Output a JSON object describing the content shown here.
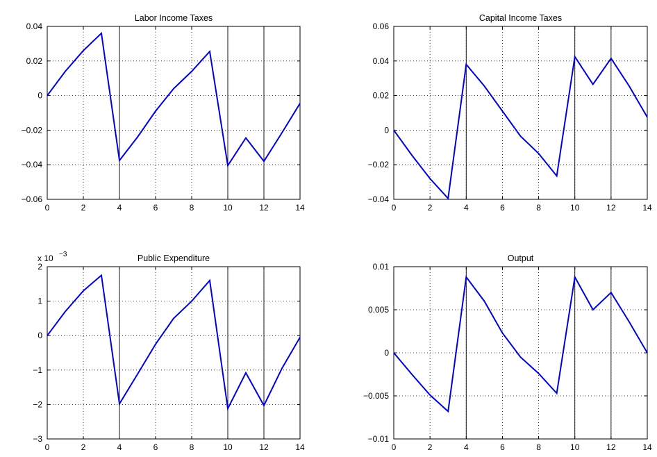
{
  "chart_data": [
    {
      "type": "line",
      "title": "Labor Income Taxes",
      "xlim": [
        0,
        14
      ],
      "ylim": [
        -0.06,
        0.04
      ],
      "xticks": [
        0,
        2,
        4,
        6,
        8,
        10,
        12,
        14
      ],
      "yticks": [
        -0.06,
        -0.04,
        -0.02,
        0,
        0.02,
        0.04
      ],
      "xtick_labels": [
        "0",
        "2",
        "4",
        "6",
        "8",
        "10",
        "12",
        "14"
      ],
      "ytick_labels": [
        "−0.06",
        "−0.04",
        "−0.02",
        "0",
        "0.02",
        "0.04"
      ],
      "y_exponent": "",
      "grid": "dotted",
      "vlines": [
        4,
        10,
        12
      ],
      "series": [
        {
          "color": "#0000dd",
          "x": [
            0,
            1,
            2,
            3,
            4,
            5,
            6,
            7,
            8,
            9,
            10,
            11,
            12,
            13,
            14
          ],
          "y": [
            0.0,
            0.014,
            0.026,
            0.036,
            -0.0375,
            -0.024,
            -0.009,
            0.004,
            0.014,
            0.0255,
            -0.0405,
            -0.0245,
            -0.038,
            -0.0215,
            -0.0045
          ]
        }
      ]
    },
    {
      "type": "line",
      "title": "Capital Income Taxes",
      "xlim": [
        0,
        14
      ],
      "ylim": [
        -0.04,
        0.06
      ],
      "xticks": [
        0,
        2,
        4,
        6,
        8,
        10,
        12,
        14
      ],
      "yticks": [
        -0.04,
        -0.02,
        0,
        0.02,
        0.04,
        0.06
      ],
      "xtick_labels": [
        "0",
        "2",
        "4",
        "6",
        "8",
        "10",
        "12",
        "14"
      ],
      "ytick_labels": [
        "−0.04",
        "−0.02",
        "0",
        "0.02",
        "0.04",
        "0.06"
      ],
      "y_exponent": "",
      "grid": "dotted",
      "vlines": [
        4,
        10,
        12
      ],
      "series": [
        {
          "color": "#0000dd",
          "x": [
            0,
            1,
            2,
            3,
            4,
            5,
            6,
            7,
            8,
            9,
            10,
            11,
            12,
            13,
            14
          ],
          "y": [
            0.0,
            -0.0145,
            -0.028,
            -0.0395,
            0.038,
            0.0255,
            0.011,
            -0.0035,
            -0.0135,
            -0.0265,
            0.0425,
            0.0265,
            0.0415,
            0.0255,
            0.0075
          ]
        }
      ]
    },
    {
      "type": "line",
      "title": "Public Expenditure",
      "xlim": [
        0,
        14
      ],
      "ylim": [
        -3,
        2
      ],
      "xticks": [
        0,
        2,
        4,
        6,
        8,
        10,
        12,
        14
      ],
      "yticks": [
        -3,
        -2,
        -1,
        0,
        1,
        2
      ],
      "xtick_labels": [
        "0",
        "2",
        "4",
        "6",
        "8",
        "10",
        "12",
        "14"
      ],
      "ytick_labels": [
        "−3",
        "−2",
        "−1",
        "0",
        "1",
        "2"
      ],
      "y_exponent": "x 10",
      "y_exponent_power": "−3",
      "grid": "dotted",
      "vlines": [
        4,
        10,
        12
      ],
      "series": [
        {
          "color": "#0000dd",
          "x": [
            0,
            1,
            2,
            3,
            4,
            5,
            6,
            7,
            8,
            9,
            10,
            11,
            12,
            13,
            14
          ],
          "y": [
            0.0,
            0.7,
            1.3,
            1.75,
            -1.98,
            -1.12,
            -0.25,
            0.5,
            1.0,
            1.6,
            -2.12,
            -1.08,
            -2.03,
            -0.95,
            -0.05
          ]
        }
      ]
    },
    {
      "type": "line",
      "title": "Output",
      "xlim": [
        0,
        14
      ],
      "ylim": [
        -0.01,
        0.01
      ],
      "xticks": [
        0,
        2,
        4,
        6,
        8,
        10,
        12,
        14
      ],
      "yticks": [
        -0.01,
        -0.005,
        0,
        0.005,
        0.01
      ],
      "xtick_labels": [
        "0",
        "2",
        "4",
        "6",
        "8",
        "10",
        "12",
        "14"
      ],
      "ytick_labels": [
        "−0.01",
        "−0.005",
        "0",
        "0.005",
        "0.01"
      ],
      "y_exponent": "",
      "grid": "dotted",
      "vlines": [
        4,
        10,
        12
      ],
      "series": [
        {
          "color": "#0000dd",
          "x": [
            0,
            1,
            2,
            3,
            4,
            5,
            6,
            7,
            8,
            9,
            10,
            11,
            12,
            13,
            14
          ],
          "y": [
            0.0,
            -0.0025,
            -0.0049,
            -0.0068,
            0.0088,
            0.006,
            0.0023,
            -0.0005,
            -0.0024,
            -0.0047,
            0.0088,
            0.005,
            0.007,
            0.0036,
            0.0
          ]
        }
      ]
    }
  ]
}
